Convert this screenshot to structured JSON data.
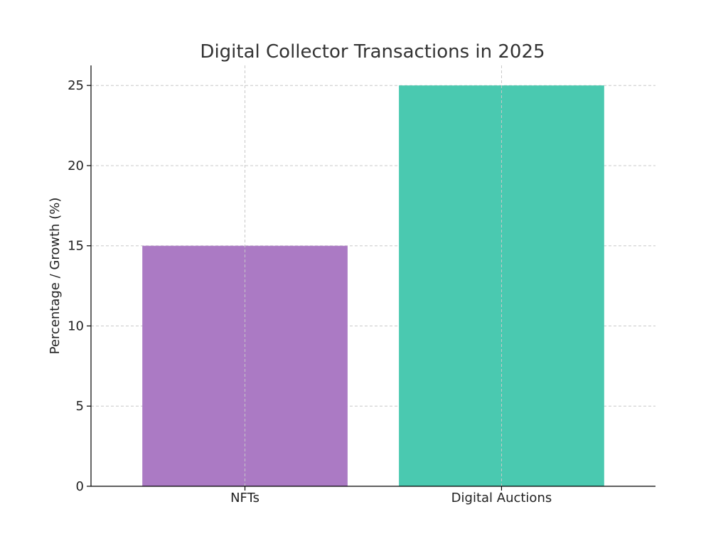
{
  "chart_data": {
    "type": "bar",
    "title": "Digital Collector Transactions in 2025",
    "xlabel": "",
    "ylabel": "Percentage / Growth (%)",
    "categories": [
      "NFTs",
      "Digital Auctions"
    ],
    "values": [
      15,
      25
    ],
    "colors": [
      "#ab7ac4",
      "#4ac9b0"
    ],
    "ylim": [
      0,
      26.25
    ],
    "yticks": [
      0,
      5,
      10,
      15,
      20,
      25
    ],
    "grid": true,
    "legend": "none"
  }
}
